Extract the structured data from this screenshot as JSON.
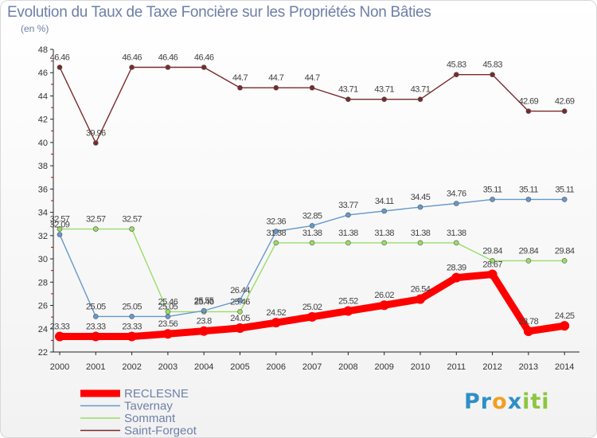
{
  "page": {
    "title": "Evolution du Taux de Taxe Foncière sur les Propriétés Non Bâties",
    "subtitle": "(en %)"
  },
  "logo": {
    "letters": [
      "P",
      "r",
      "o",
      "x",
      "i",
      "t",
      "i"
    ],
    "colors": [
      "#2e8fc7",
      "#2e8fc7",
      "#f0a020",
      "#2e8fc7",
      "#8cc63f",
      "#8cc63f",
      "#8cc63f"
    ]
  },
  "chart_data": {
    "type": "line",
    "title": "Evolution du Taux de Taxe Foncière sur les Propriétés Non Bâties",
    "subtitle": "(en %)",
    "xlabel": "",
    "ylabel": "",
    "x": [
      "2000",
      "2001",
      "2002",
      "2003",
      "2004",
      "2005",
      "2006",
      "2007",
      "2008",
      "2009",
      "2010",
      "2011",
      "2012",
      "2013",
      "2014"
    ],
    "ylim": [
      22,
      48
    ],
    "yticks": [
      22,
      24,
      26,
      28,
      30,
      32,
      34,
      36,
      38,
      40,
      42,
      44,
      46,
      48
    ],
    "grid": false,
    "legend_position": "bottom-left",
    "series": [
      {
        "name": "RECLESNE",
        "color": "#ff0000",
        "values": [
          23.33,
          23.33,
          23.33,
          23.56,
          23.8,
          24.05,
          24.52,
          25.02,
          25.52,
          26.02,
          26.54,
          28.39,
          28.67,
          23.78,
          24.25
        ],
        "labels": [
          "23.33",
          "23.33",
          "23.33",
          "23.56",
          "23.8",
          "24.05",
          "24.52",
          "25.02",
          "25.52",
          "26.02",
          "26.54",
          "28.39",
          "28.67",
          "23.78",
          "24.25"
        ]
      },
      {
        "name": "Tavernay",
        "color": "#6699cc",
        "values": [
          32.09,
          25.05,
          25.05,
          25.05,
          25.55,
          26.44,
          32.36,
          32.85,
          33.77,
          34.11,
          34.45,
          34.76,
          35.11,
          35.11,
          35.11
        ],
        "labels": [
          "32.09",
          "25.05",
          "25.05",
          "25.05",
          "25.55",
          "26.44",
          "32.36",
          "32.85",
          "33.77",
          "34.11",
          "34.45",
          "34.76",
          "35.11",
          "35.11",
          "35.11"
        ]
      },
      {
        "name": "Sommant",
        "color": "#99dd66",
        "values": [
          32.57,
          32.57,
          32.57,
          25.46,
          25.46,
          25.46,
          31.38,
          31.38,
          31.38,
          31.38,
          31.38,
          31.38,
          29.84,
          29.84,
          29.84
        ],
        "labels": [
          "32.57",
          "32.57",
          "32.57",
          "25.46",
          "25.46",
          "25.46",
          "31.38",
          "31.38",
          "31.38",
          "31.38",
          "31.38",
          "31.38",
          "29.84",
          "29.84",
          "29.84"
        ]
      },
      {
        "name": "Saint-Forgeot",
        "color": "#7a2a2a",
        "values": [
          46.46,
          39.96,
          46.46,
          46.46,
          46.46,
          44.7,
          44.7,
          44.7,
          43.71,
          43.71,
          43.71,
          45.83,
          45.83,
          42.69,
          42.69
        ],
        "labels": [
          "46.46",
          "39.96",
          "46.46",
          "46.46",
          "46.46",
          "44.7",
          "44.7",
          "44.7",
          "43.71",
          "43.71",
          "43.71",
          "45.83",
          "45.83",
          "42.69",
          "42.69"
        ]
      }
    ]
  }
}
